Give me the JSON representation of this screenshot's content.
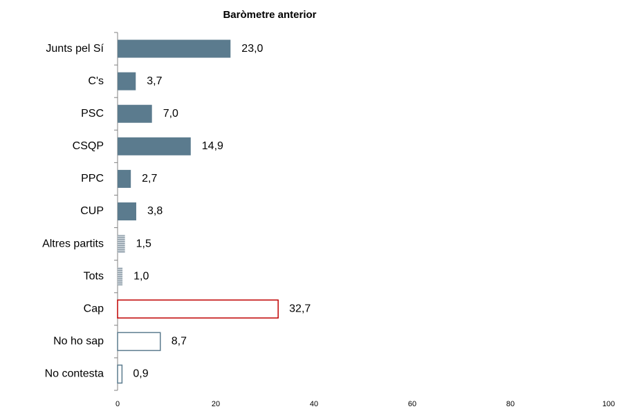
{
  "chart_data": {
    "type": "barh",
    "title": "Baròmetre anterior",
    "categories": [
      "Junts pel Sí",
      "C's",
      "PSC",
      "CSQP",
      "PPC",
      "CUP",
      "Altres partits",
      "Tots",
      "Cap",
      "No ho sap",
      "No contesta"
    ],
    "values": [
      23.0,
      3.7,
      7.0,
      14.9,
      2.7,
      3.8,
      1.5,
      1.0,
      32.7,
      8.7,
      0.9
    ],
    "value_labels": [
      "23,0",
      "3,7",
      "7,0",
      "14,9",
      "2,7",
      "3,8",
      "1,5",
      "1,0",
      "32,7",
      "8,7",
      "0,9"
    ],
    "colors": [
      "#5b7b8e",
      "#5b7b8e",
      "#5b7b8e",
      "#5b7b8e",
      "#5b7b8e",
      "#5b7b8e",
      "#a9b6bf",
      "#a9b6bf",
      "#c00000",
      "#5b7b8e",
      "#5b7b8e"
    ],
    "fills": [
      "solid",
      "solid",
      "solid",
      "solid",
      "solid",
      "solid",
      "hatch",
      "hatch",
      "outline",
      "outline",
      "outline"
    ],
    "label_colors": [
      "#000000",
      "#000000",
      "#000000",
      "#000000",
      "#000000",
      "#000000",
      "#000000",
      "#000000",
      "#c00000",
      "#000000",
      "#000000"
    ],
    "xlim": [
      0,
      100
    ],
    "xticks": [
      0,
      20,
      40,
      60,
      80,
      100
    ]
  }
}
